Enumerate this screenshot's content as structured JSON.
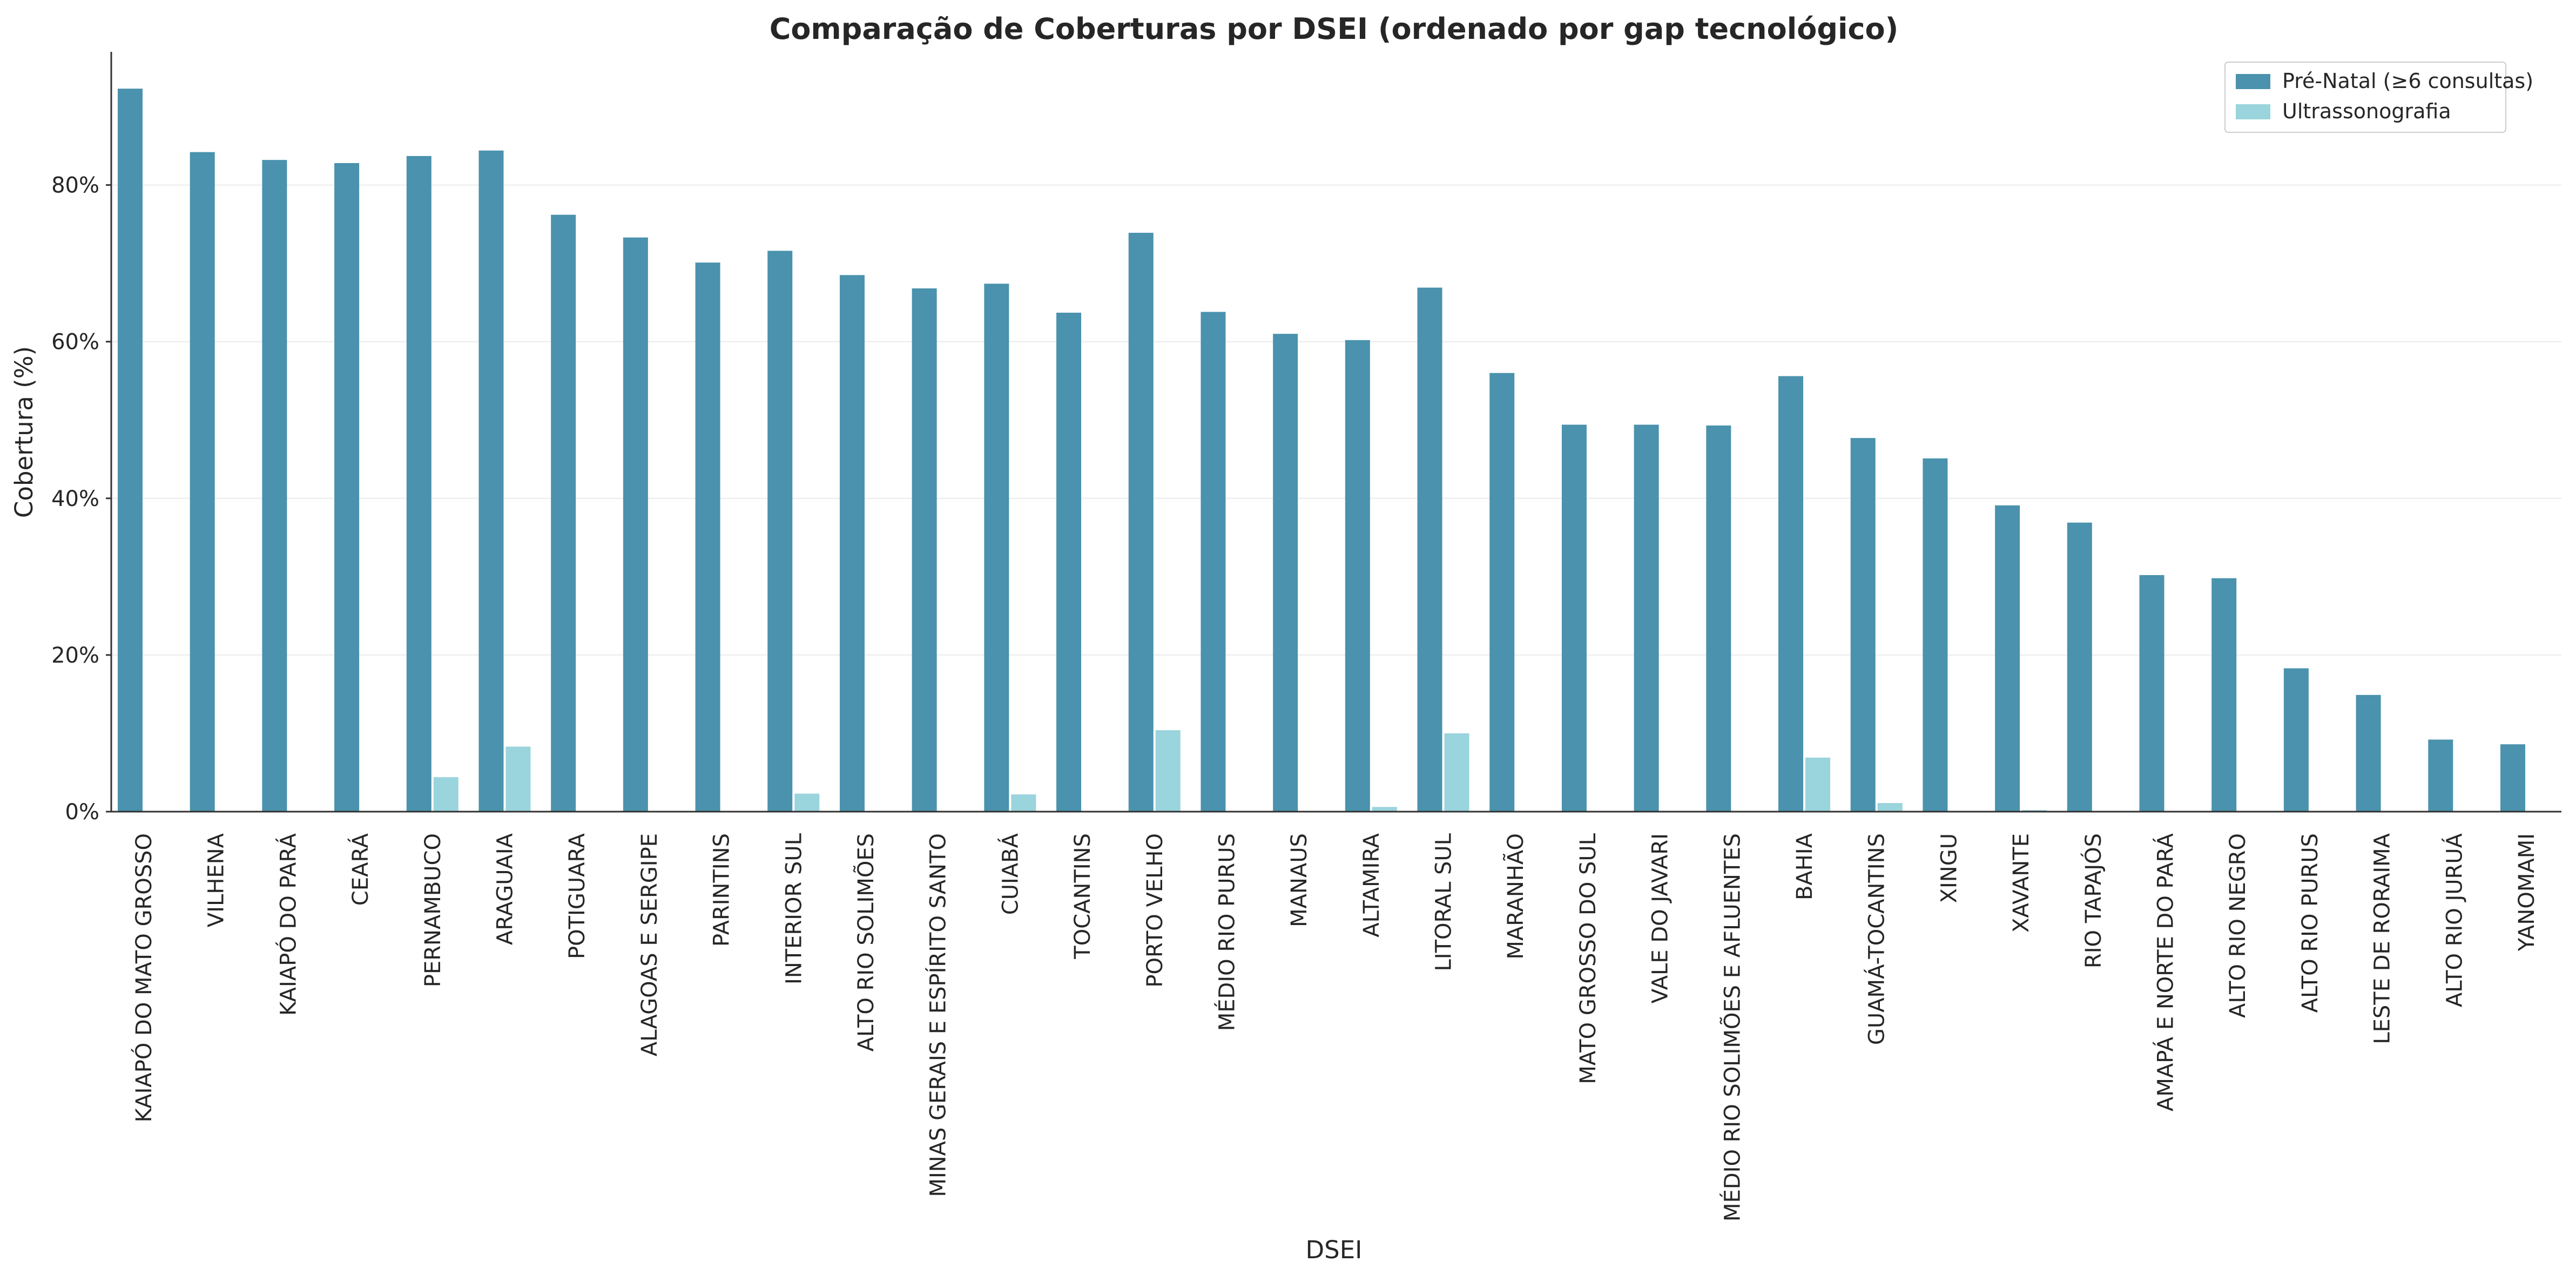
{
  "chart_data": {
    "type": "bar",
    "title": "Comparação de Coberturas por DSEI (ordenado por gap tecnológico)",
    "xlabel": "DSEI",
    "ylabel": "Cobertura (%)",
    "ylim": [
      0,
      97
    ],
    "yticks": [
      0,
      20,
      40,
      60,
      80
    ],
    "ytick_labels": [
      "0%",
      "20%",
      "40%",
      "60%",
      "80%"
    ],
    "grid": "horizontal",
    "legend_position": "top-right",
    "categories": [
      "KAIAPÓ DO MATO GROSSO",
      "VILHENA",
      "KAIAPÓ DO PARÁ",
      "CEARÁ",
      "PERNAMBUCO",
      "ARAGUAIA",
      "POTIGUARA",
      "ALAGOAS E SERGIPE",
      "PARINTINS",
      "INTERIOR SUL",
      "ALTO RIO SOLIMÕES",
      "MINAS GERAIS E ESPÍRITO SANTO",
      "CUIABÁ",
      "TOCANTINS",
      "PORTO VELHO",
      "MÉDIO RIO PURUS",
      "MANAUS",
      "ALTAMIRA",
      "LITORAL SUL",
      "MARANHÃO",
      "MATO GROSSO DO SUL",
      "VALE DO JAVARI",
      "MÉDIO RIO SOLIMÕES E AFLUENTES",
      "BAHIA",
      "GUAMÁ-TOCANTINS",
      "XINGU",
      "XAVANTE",
      "RIO TAPAJÓS",
      "AMAPÁ E NORTE DO PARÁ",
      "ALTO RIO NEGRO",
      "ALTO RIO PURUS",
      "LESTE DE RORAIMA",
      "ALTO RIO JURUÁ",
      "YANOMAMI"
    ],
    "series": [
      {
        "name": "Pré-Natal (≥6 consultas)",
        "color": "#4a92ad",
        "values": [
          92.3,
          84.2,
          83.2,
          82.8,
          83.7,
          84.4,
          76.2,
          73.3,
          70.1,
          71.6,
          68.5,
          66.8,
          67.4,
          63.7,
          73.9,
          63.8,
          61.0,
          60.2,
          66.9,
          56.0,
          49.4,
          49.4,
          49.3,
          55.6,
          47.7,
          45.1,
          39.1,
          36.9,
          30.2,
          29.8,
          18.3,
          14.9,
          9.2,
          8.6
        ]
      },
      {
        "name": "Ultrassonografia",
        "color": "#9ad4dc",
        "values": [
          0,
          0,
          0,
          0,
          4.4,
          8.3,
          0,
          0,
          0,
          2.3,
          0,
          0,
          2.2,
          0,
          10.4,
          0,
          0,
          0.6,
          10.0,
          0,
          0,
          0,
          0,
          6.9,
          1.1,
          0,
          0.2,
          0,
          0,
          0,
          0,
          0,
          0,
          0
        ]
      }
    ]
  }
}
